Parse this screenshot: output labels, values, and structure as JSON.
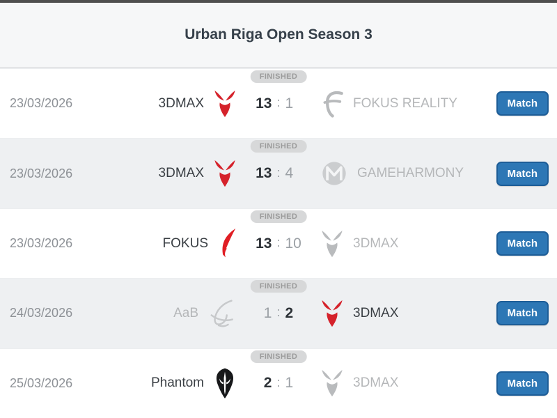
{
  "header": {
    "title": "Urban Riga Open Season 3"
  },
  "score_separator": ":",
  "match_button_label": "Match",
  "colors": {
    "accent_blue": "#2d77b5",
    "accent_blue_border": "#1d5d97",
    "team_red": "#d5222b",
    "flame_red": "#e01e24",
    "winner_text": "#2d3237",
    "loser_text": "#b5b7b9",
    "badge_bg": "#d7d8d9",
    "badge_text": "#9b9b9b",
    "row_alt_bg": "#eef0f2",
    "header_bg": "#f6f7f8"
  },
  "matches": [
    {
      "date": "23/03/2026",
      "status": "FINISHED",
      "team1": {
        "name": "3DMAX",
        "icon": "devil-icon",
        "winner": true
      },
      "score": {
        "team1": "13",
        "team2": "1"
      },
      "team2": {
        "name": "FOKUS REALITY",
        "icon": "fokus-f-icon",
        "winner": false
      }
    },
    {
      "date": "23/03/2026",
      "status": "FINISHED",
      "team1": {
        "name": "3DMAX",
        "icon": "devil-icon",
        "winner": true
      },
      "score": {
        "team1": "13",
        "team2": "4"
      },
      "team2": {
        "name": "GAMEHARMONY",
        "icon": "gameharmony-emblem-icon",
        "winner": false
      }
    },
    {
      "date": "23/03/2026",
      "status": "FINISHED",
      "team1": {
        "name": "FOKUS",
        "icon": "fokus-flame-icon",
        "winner": true
      },
      "score": {
        "team1": "13",
        "team2": "10"
      },
      "team2": {
        "name": "3DMAX",
        "icon": "devil-icon",
        "winner": false
      }
    },
    {
      "date": "24/03/2026",
      "status": "FINISHED",
      "team1": {
        "name": "AaB",
        "icon": "aab-scribble-icon",
        "winner": false
      },
      "score": {
        "team1": "1",
        "team2": "2"
      },
      "team2": {
        "name": "3DMAX",
        "icon": "devil-icon",
        "winner": true
      }
    },
    {
      "date": "25/03/2026",
      "status": "FINISHED",
      "team1": {
        "name": "Phantom",
        "icon": "phantom-mask-icon",
        "winner": true
      },
      "score": {
        "team1": "2",
        "team2": "1"
      },
      "team2": {
        "name": "3DMAX",
        "icon": "devil-icon",
        "winner": false
      }
    }
  ]
}
